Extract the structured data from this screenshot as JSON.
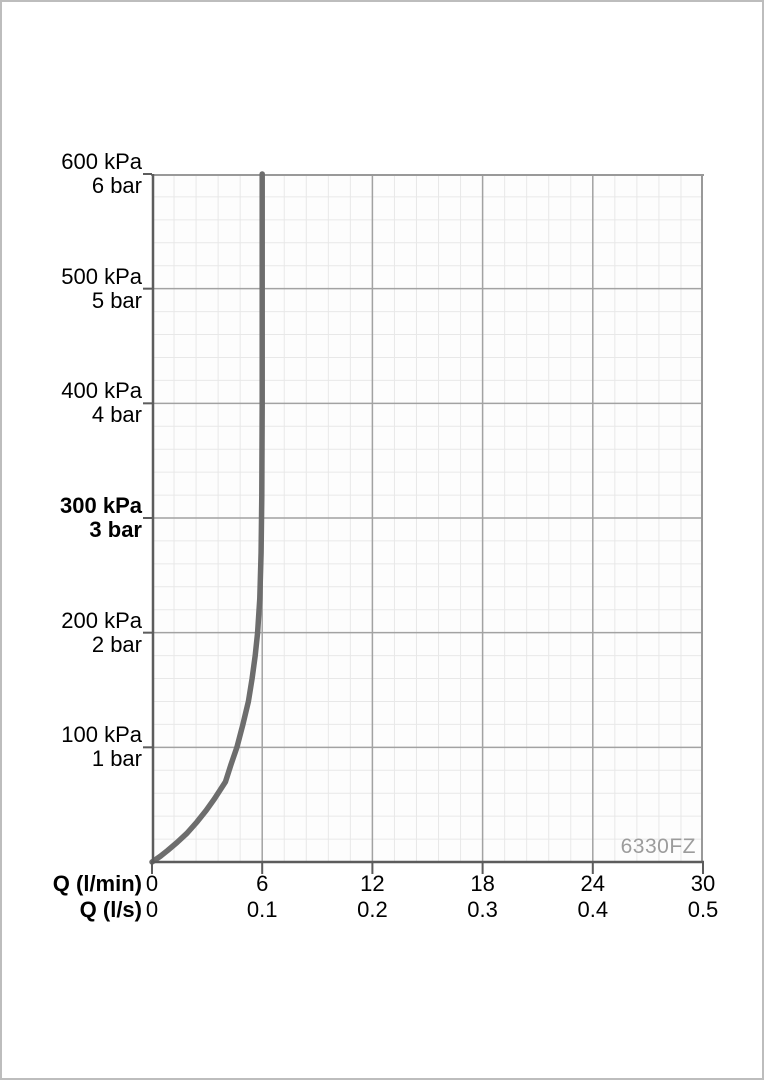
{
  "page": {
    "background": "#ffffff",
    "border_color": "#bdbdbd"
  },
  "chart_data": {
    "type": "line",
    "title": "",
    "product_code": "6330FZ",
    "description": "Flow rate vs pressure curve; flow regulated to 6 l/min (0.1 l/s) above ~170 kPa",
    "x_axis": {
      "rows": [
        {
          "label": "Q (l/min)",
          "ticks": [
            "0",
            "6",
            "12",
            "18",
            "24",
            "30"
          ]
        },
        {
          "label": "Q (l/s)",
          "ticks": [
            "0",
            "0.1",
            "0.2",
            "0.3",
            "0.4",
            "0.5"
          ]
        }
      ],
      "xlim_lmin": [
        0,
        30
      ],
      "major_step_lmin": 6,
      "minor_step_lmin": 1.2
    },
    "y_axis": {
      "ylim_kpa": [
        0,
        600
      ],
      "major_step_kpa": 100,
      "minor_step_kpa": 20,
      "ticks": [
        {
          "value_kpa": 600,
          "kpa_label": "600 kPa",
          "bar_label": "6 bar",
          "bold": false
        },
        {
          "value_kpa": 500,
          "kpa_label": "500 kPa",
          "bar_label": "5 bar",
          "bold": false
        },
        {
          "value_kpa": 400,
          "kpa_label": "400 kPa",
          "bar_label": "4 bar",
          "bold": false
        },
        {
          "value_kpa": 300,
          "kpa_label": "300 kPa",
          "bar_label": "3 bar",
          "bold": true
        },
        {
          "value_kpa": 200,
          "kpa_label": "200 kPa",
          "bar_label": "2 bar",
          "bold": false
        },
        {
          "value_kpa": 100,
          "kpa_label": "100 kPa",
          "bar_label": "1 bar",
          "bold": false
        }
      ]
    },
    "series": [
      {
        "name": "flow-curve",
        "points_kpa_lmin": [
          [
            0,
            0
          ],
          [
            5,
            0.45
          ],
          [
            10,
            0.85
          ],
          [
            17,
            1.36
          ],
          [
            25,
            1.9
          ],
          [
            35,
            2.45
          ],
          [
            45,
            2.95
          ],
          [
            55,
            3.4
          ],
          [
            70,
            4.0
          ],
          [
            85,
            4.3
          ],
          [
            100,
            4.62
          ],
          [
            120,
            4.95
          ],
          [
            140,
            5.25
          ],
          [
            160,
            5.45
          ],
          [
            180,
            5.62
          ],
          [
            200,
            5.75
          ],
          [
            230,
            5.87
          ],
          [
            270,
            5.94
          ],
          [
            320,
            5.98
          ],
          [
            400,
            6.0
          ],
          [
            600,
            6.0
          ]
        ]
      }
    ],
    "grid": true,
    "legend": "none",
    "colors": {
      "curve": "#6d6d6d",
      "grid_minor": "#e8e8e8",
      "grid_major": "#a2a2a2",
      "frame": "#999999",
      "axis": "#5c5c5c",
      "plot_background": "#fdfdfd",
      "watermark": "#9c9c9c",
      "text": "#000000"
    }
  }
}
